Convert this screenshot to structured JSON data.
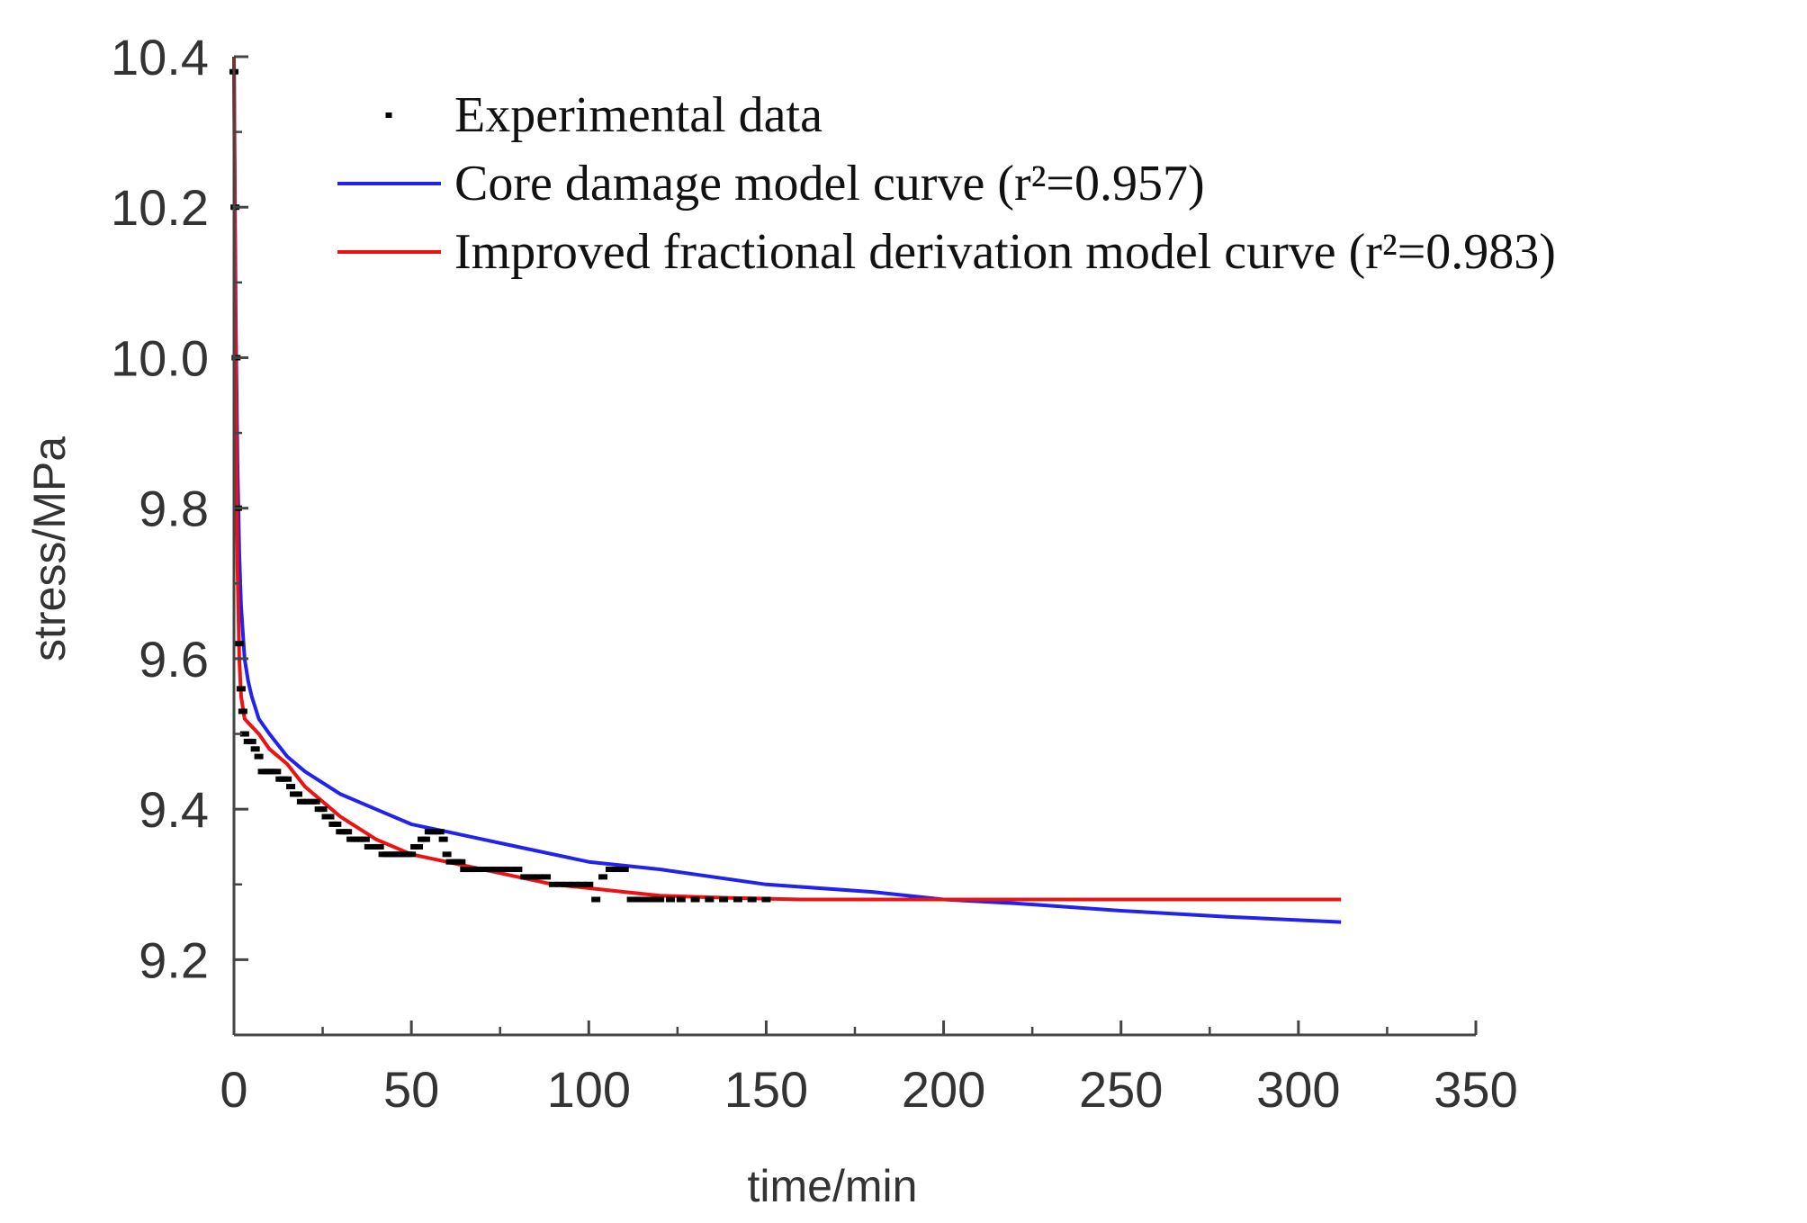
{
  "chart_data": {
    "type": "line",
    "xlabel": "time/min",
    "ylabel": "stress/MPa",
    "xlim": [
      0,
      350
    ],
    "ylim": [
      9.1,
      10.4
    ],
    "x_ticks": [
      "0",
      "50",
      "100",
      "150",
      "200",
      "250",
      "300",
      "350"
    ],
    "y_ticks": [
      "9.2",
      "9.4",
      "9.6",
      "9.8",
      "10.0",
      "10.2",
      "10.4"
    ],
    "grid": false,
    "legend_position": "top-right",
    "series": [
      {
        "name": "Experimental data",
        "kind": "scatter",
        "color": "#000000",
        "points": [
          [
            0,
            10.38
          ],
          [
            0.3,
            10.2
          ],
          [
            0.6,
            10.0
          ],
          [
            1,
            9.8
          ],
          [
            1.5,
            9.62
          ],
          [
            2,
            9.56
          ],
          [
            2.5,
            9.53
          ],
          [
            3,
            9.5
          ],
          [
            4,
            9.49
          ],
          [
            5,
            9.49
          ],
          [
            6,
            9.48
          ],
          [
            7,
            9.47
          ],
          [
            8,
            9.45
          ],
          [
            9,
            9.45
          ],
          [
            10,
            9.45
          ],
          [
            11,
            9.45
          ],
          [
            12,
            9.45
          ],
          [
            13,
            9.44
          ],
          [
            14,
            9.44
          ],
          [
            15,
            9.44
          ],
          [
            16,
            9.43
          ],
          [
            17,
            9.42
          ],
          [
            18,
            9.42
          ],
          [
            19,
            9.41
          ],
          [
            20,
            9.41
          ],
          [
            21,
            9.41
          ],
          [
            22,
            9.41
          ],
          [
            23,
            9.41
          ],
          [
            24,
            9.4
          ],
          [
            25,
            9.4
          ],
          [
            26,
            9.39
          ],
          [
            27,
            9.39
          ],
          [
            28,
            9.38
          ],
          [
            29,
            9.38
          ],
          [
            30,
            9.37
          ],
          [
            31,
            9.37
          ],
          [
            32,
            9.37
          ],
          [
            33,
            9.36
          ],
          [
            34,
            9.36
          ],
          [
            35,
            9.36
          ],
          [
            36,
            9.36
          ],
          [
            37,
            9.36
          ],
          [
            38,
            9.35
          ],
          [
            39,
            9.35
          ],
          [
            40,
            9.35
          ],
          [
            41,
            9.35
          ],
          [
            42,
            9.34
          ],
          [
            43,
            9.34
          ],
          [
            44,
            9.34
          ],
          [
            45,
            9.34
          ],
          [
            46,
            9.34
          ],
          [
            47,
            9.34
          ],
          [
            48,
            9.34
          ],
          [
            49,
            9.34
          ],
          [
            50,
            9.34
          ],
          [
            51,
            9.35
          ],
          [
            52,
            9.35
          ],
          [
            53,
            9.36
          ],
          [
            54,
            9.36
          ],
          [
            55,
            9.37
          ],
          [
            56,
            9.37
          ],
          [
            57,
            9.37
          ],
          [
            58,
            9.37
          ],
          [
            59,
            9.36
          ],
          [
            60,
            9.34
          ],
          [
            61,
            9.33
          ],
          [
            62,
            9.33
          ],
          [
            63,
            9.33
          ],
          [
            64,
            9.33
          ],
          [
            65,
            9.32
          ],
          [
            66,
            9.32
          ],
          [
            67,
            9.32
          ],
          [
            68,
            9.32
          ],
          [
            70,
            9.32
          ],
          [
            72,
            9.32
          ],
          [
            74,
            9.32
          ],
          [
            76,
            9.32
          ],
          [
            78,
            9.32
          ],
          [
            80,
            9.32
          ],
          [
            82,
            9.31
          ],
          [
            84,
            9.31
          ],
          [
            86,
            9.31
          ],
          [
            88,
            9.31
          ],
          [
            90,
            9.3
          ],
          [
            92,
            9.3
          ],
          [
            94,
            9.3
          ],
          [
            96,
            9.3
          ],
          [
            98,
            9.3
          ],
          [
            100,
            9.3
          ],
          [
            102,
            9.28
          ],
          [
            104,
            9.31
          ],
          [
            106,
            9.32
          ],
          [
            108,
            9.32
          ],
          [
            110,
            9.32
          ],
          [
            112,
            9.28
          ],
          [
            114,
            9.28
          ],
          [
            116,
            9.28
          ],
          [
            118,
            9.28
          ],
          [
            120,
            9.28
          ],
          [
            123,
            9.28
          ],
          [
            126,
            9.28
          ],
          [
            130,
            9.28
          ],
          [
            134,
            9.28
          ],
          [
            138,
            9.28
          ],
          [
            142,
            9.28
          ],
          [
            146,
            9.28
          ],
          [
            150,
            9.28
          ]
        ]
      },
      {
        "name": "Core damage model curve (r²=0.957)",
        "kind": "line",
        "color": "#2222ee",
        "points": [
          [
            0,
            10.4
          ],
          [
            0.5,
            10.05
          ],
          [
            1,
            9.86
          ],
          [
            1.5,
            9.74
          ],
          [
            2,
            9.67
          ],
          [
            3,
            9.6
          ],
          [
            4,
            9.57
          ],
          [
            5,
            9.55
          ],
          [
            7,
            9.52
          ],
          [
            10,
            9.5
          ],
          [
            15,
            9.47
          ],
          [
            20,
            9.45
          ],
          [
            30,
            9.42
          ],
          [
            40,
            9.4
          ],
          [
            50,
            9.38
          ],
          [
            60,
            9.37
          ],
          [
            80,
            9.35
          ],
          [
            100,
            9.33
          ],
          [
            120,
            9.32
          ],
          [
            150,
            9.3
          ],
          [
            180,
            9.29
          ],
          [
            200,
            9.28
          ],
          [
            220,
            9.275
          ],
          [
            250,
            9.265
          ],
          [
            280,
            9.257
          ],
          [
            312,
            9.25
          ]
        ]
      },
      {
        "name": "Improved fractional derivation model curve (r²=0.983)",
        "kind": "line",
        "color": "#ee1111",
        "points": [
          [
            0,
            10.4
          ],
          [
            0.3,
            10.1
          ],
          [
            0.6,
            9.9
          ],
          [
            1,
            9.72
          ],
          [
            1.5,
            9.6
          ],
          [
            2,
            9.55
          ],
          [
            3,
            9.52
          ],
          [
            5,
            9.51
          ],
          [
            7,
            9.5
          ],
          [
            10,
            9.48
          ],
          [
            15,
            9.46
          ],
          [
            20,
            9.43
          ],
          [
            25,
            9.41
          ],
          [
            30,
            9.39
          ],
          [
            40,
            9.36
          ],
          [
            50,
            9.34
          ],
          [
            60,
            9.33
          ],
          [
            70,
            9.32
          ],
          [
            80,
            9.31
          ],
          [
            90,
            9.3
          ],
          [
            100,
            9.295
          ],
          [
            110,
            9.29
          ],
          [
            120,
            9.285
          ],
          [
            140,
            9.282
          ],
          [
            160,
            9.28
          ],
          [
            200,
            9.28
          ],
          [
            250,
            9.28
          ],
          [
            312,
            9.28
          ]
        ]
      }
    ]
  }
}
